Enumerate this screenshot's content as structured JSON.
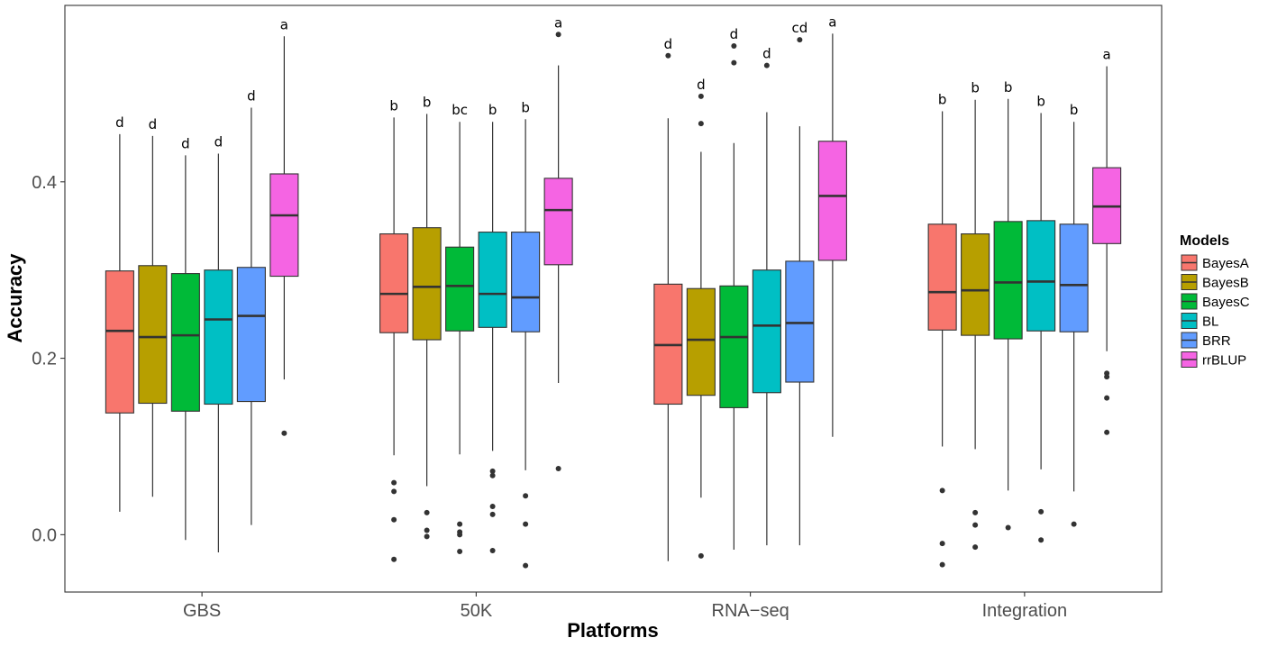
{
  "chart_data": {
    "type": "boxplot",
    "title": "",
    "xlabel": "Platforms",
    "ylabel": "Accuracy",
    "ylim": [
      -0.065,
      0.6
    ],
    "yticks": [
      0.0,
      0.2,
      0.4
    ],
    "ytick_labels": [
      "0.0",
      "0.2",
      "0.4"
    ],
    "grid": false,
    "legend": {
      "title": "Models",
      "position": "right"
    },
    "categories": [
      "GBS",
      "50K",
      "RNA−seq",
      "Integration"
    ],
    "models": [
      {
        "name": "BayesA",
        "color": "#F8766D"
      },
      {
        "name": "BayesB",
        "color": "#B79F00"
      },
      {
        "name": "BayesC",
        "color": "#00BA38"
      },
      {
        "name": "BL",
        "color": "#00BFC4"
      },
      {
        "name": "BRR",
        "color": "#619CFF"
      },
      {
        "name": "rrBLUP",
        "color": "#F564E3"
      }
    ],
    "boxes": [
      [
        {
          "min": 0.026,
          "q1": 0.138,
          "median": 0.231,
          "q3": 0.299,
          "max": 0.454,
          "outliers": [],
          "label": "d"
        },
        {
          "min": 0.043,
          "q1": 0.149,
          "median": 0.224,
          "q3": 0.305,
          "max": 0.452,
          "outliers": [],
          "label": "d"
        },
        {
          "min": -0.006,
          "q1": 0.14,
          "median": 0.226,
          "q3": 0.296,
          "max": 0.43,
          "outliers": [],
          "label": "d"
        },
        {
          "min": -0.02,
          "q1": 0.148,
          "median": 0.244,
          "q3": 0.3,
          "max": 0.432,
          "outliers": [],
          "label": "d"
        },
        {
          "min": 0.011,
          "q1": 0.151,
          "median": 0.248,
          "q3": 0.303,
          "max": 0.484,
          "outliers": [],
          "label": "d"
        },
        {
          "min": 0.176,
          "q1": 0.293,
          "median": 0.362,
          "q3": 0.409,
          "max": 0.565,
          "outliers": [
            0.115
          ],
          "label": "a"
        }
      ],
      [
        {
          "min": 0.09,
          "q1": 0.229,
          "median": 0.273,
          "q3": 0.341,
          "max": 0.473,
          "outliers": [
            0.059,
            0.049,
            0.017,
            -0.028
          ],
          "label": "b"
        },
        {
          "min": 0.055,
          "q1": 0.221,
          "median": 0.281,
          "q3": 0.348,
          "max": 0.477,
          "outliers": [
            0.025,
            0.005,
            -0.002
          ],
          "label": "b"
        },
        {
          "min": 0.091,
          "q1": 0.231,
          "median": 0.282,
          "q3": 0.326,
          "max": 0.468,
          "outliers": [
            0.012,
            0.003,
            0.0,
            -0.019
          ],
          "label": "bc"
        },
        {
          "min": 0.095,
          "q1": 0.235,
          "median": 0.273,
          "q3": 0.343,
          "max": 0.468,
          "outliers": [
            0.072,
            0.067,
            0.032,
            0.023,
            -0.018
          ],
          "label": "b"
        },
        {
          "min": 0.073,
          "q1": 0.23,
          "median": 0.269,
          "q3": 0.343,
          "max": 0.471,
          "outliers": [
            0.044,
            0.012,
            -0.035
          ],
          "label": "b"
        },
        {
          "min": 0.172,
          "q1": 0.306,
          "median": 0.368,
          "q3": 0.404,
          "max": 0.532,
          "outliers": [
            0.567,
            0.075
          ],
          "label": "a"
        }
      ],
      [
        {
          "min": -0.03,
          "q1": 0.148,
          "median": 0.215,
          "q3": 0.284,
          "max": 0.472,
          "outliers": [
            0.543
          ],
          "label": "d"
        },
        {
          "min": 0.042,
          "q1": 0.158,
          "median": 0.221,
          "q3": 0.279,
          "max": 0.434,
          "outliers": [
            0.497,
            0.466,
            -0.024
          ],
          "label": "d"
        },
        {
          "min": -0.017,
          "q1": 0.144,
          "median": 0.224,
          "q3": 0.282,
          "max": 0.444,
          "outliers": [
            0.554,
            0.535
          ],
          "label": "d"
        },
        {
          "min": -0.012,
          "q1": 0.161,
          "median": 0.237,
          "q3": 0.3,
          "max": 0.479,
          "outliers": [
            0.532
          ],
          "label": "d"
        },
        {
          "min": -0.012,
          "q1": 0.173,
          "median": 0.24,
          "q3": 0.31,
          "max": 0.463,
          "outliers": [
            0.561
          ],
          "label": "cd"
        },
        {
          "min": 0.111,
          "q1": 0.311,
          "median": 0.384,
          "q3": 0.446,
          "max": 0.568,
          "outliers": [],
          "label": "a"
        }
      ],
      [
        {
          "min": 0.1,
          "q1": 0.232,
          "median": 0.275,
          "q3": 0.352,
          "max": 0.48,
          "outliers": [
            0.05,
            -0.01,
            -0.034
          ],
          "label": "b"
        },
        {
          "min": 0.097,
          "q1": 0.226,
          "median": 0.277,
          "q3": 0.341,
          "max": 0.493,
          "outliers": [
            0.025,
            0.011,
            -0.014
          ],
          "label": "b"
        },
        {
          "min": 0.05,
          "q1": 0.222,
          "median": 0.286,
          "q3": 0.355,
          "max": 0.494,
          "outliers": [
            0.008
          ],
          "label": "b"
        },
        {
          "min": 0.074,
          "q1": 0.231,
          "median": 0.287,
          "q3": 0.356,
          "max": 0.478,
          "outliers": [
            0.026,
            -0.006
          ],
          "label": "b"
        },
        {
          "min": 0.049,
          "q1": 0.23,
          "median": 0.283,
          "q3": 0.352,
          "max": 0.468,
          "outliers": [
            0.012
          ],
          "label": "b"
        },
        {
          "min": 0.208,
          "q1": 0.33,
          "median": 0.372,
          "q3": 0.416,
          "max": 0.531,
          "outliers": [
            0.183,
            0.179,
            0.155,
            0.116
          ],
          "label": "a"
        }
      ]
    ]
  }
}
